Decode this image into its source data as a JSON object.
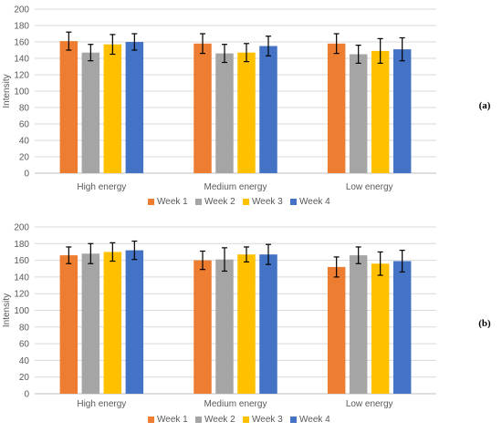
{
  "chart_data": [
    {
      "type": "bar",
      "panel_label": "(a)",
      "ylabel": "Intensity",
      "ylim": [
        0,
        200
      ],
      "yticks": [
        0,
        20,
        40,
        60,
        80,
        100,
        120,
        140,
        160,
        180,
        200
      ],
      "categories": [
        "High energy",
        "Medium energy",
        "Low energy"
      ],
      "grid": true,
      "legend_position": "bottom",
      "series": [
        {
          "name": "Week 1",
          "color": "#ed7d31",
          "values": [
            161,
            158,
            158
          ],
          "errors": [
            11,
            12,
            12
          ]
        },
        {
          "name": "Week 2",
          "color": "#a5a5a5",
          "values": [
            147,
            146,
            145
          ],
          "errors": [
            10,
            11,
            11
          ]
        },
        {
          "name": "Week 3",
          "color": "#ffc000",
          "values": [
            157,
            147,
            149
          ],
          "errors": [
            12,
            11,
            15
          ]
        },
        {
          "name": "Week 4",
          "color": "#4472c4",
          "values": [
            160,
            155,
            151
          ],
          "errors": [
            10,
            12,
            14
          ]
        }
      ]
    },
    {
      "type": "bar",
      "panel_label": "(b)",
      "ylabel": "Intensity",
      "ylim": [
        0,
        200
      ],
      "yticks": [
        0,
        20,
        40,
        60,
        80,
        100,
        120,
        140,
        160,
        180,
        200
      ],
      "categories": [
        "High energy",
        "Medium energy",
        "Low energy"
      ],
      "grid": true,
      "legend_position": "bottom",
      "series": [
        {
          "name": "Week 1",
          "color": "#ed7d31",
          "values": [
            166,
            160,
            152
          ],
          "errors": [
            10,
            11,
            12
          ]
        },
        {
          "name": "Week 2",
          "color": "#a5a5a5",
          "values": [
            168,
            161,
            166
          ],
          "errors": [
            12,
            14,
            10
          ]
        },
        {
          "name": "Week 3",
          "color": "#ffc000",
          "values": [
            170,
            167,
            156
          ],
          "errors": [
            11,
            9,
            14
          ]
        },
        {
          "name": "Week 4",
          "color": "#4472c4",
          "values": [
            172,
            167,
            159
          ],
          "errors": [
            11,
            12,
            13
          ]
        }
      ]
    }
  ]
}
